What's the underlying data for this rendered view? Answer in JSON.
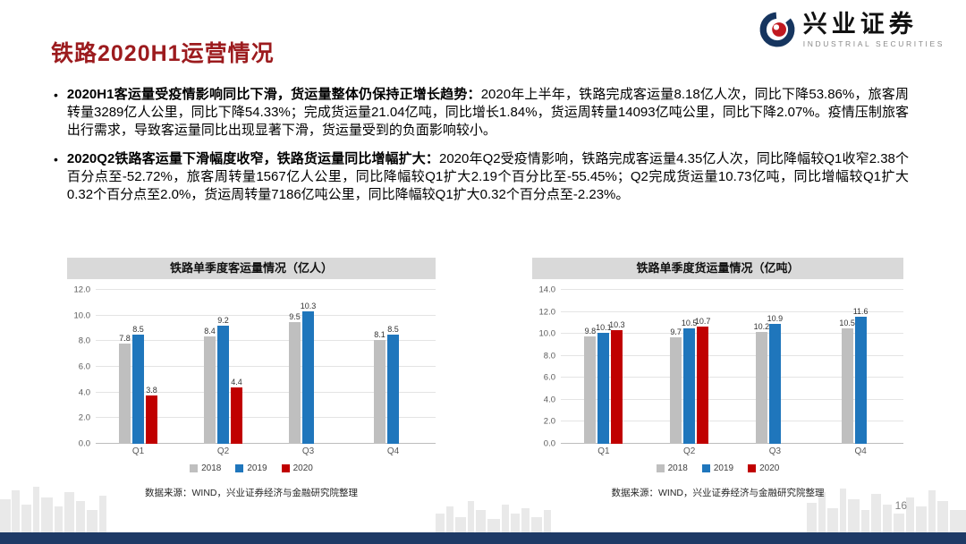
{
  "header": {
    "title": "铁路2020H1运营情况",
    "logo_cn": "兴业证券",
    "logo_en": "INDUSTRIAL SECURITIES"
  },
  "bullet_char": "•",
  "bullets": [
    {
      "bold": "2020H1客运量受疫情影响同比下滑，货运量整体仍保持正增长趋势：",
      "text": "2020年上半年，铁路完成客运量8.18亿人次，同比下降53.86%，旅客周转量3289亿人公里，同比下降54.33%；完成货运量21.04亿吨，同比增长1.84%，货运周转量14093亿吨公里，同比下降2.07%。疫情压制旅客出行需求，导致客运量同比出现显著下滑，货运量受到的负面影响较小。"
    },
    {
      "bold": "2020Q2铁路客运量下滑幅度收窄，铁路货运量同比增幅扩大：",
      "text": "2020年Q2受疫情影响，铁路完成客运量4.35亿人次，同比降幅较Q1收窄2.38个百分点至-52.72%，旅客周转量1567亿人公里，同比降幅较Q1扩大2.19个百分比至-55.45%；Q2完成货运量10.73亿吨，同比增幅较Q1扩大0.32个百分点至2.0%，货运周转量7186亿吨公里，同比降幅较Q1扩大0.32个百分点至-2.23%。"
    }
  ],
  "colors": {
    "title_red": "#9C1B1E",
    "series_2018": "#BFBFBF",
    "series_2019": "#1F76BC",
    "series_2020": "#C00000",
    "chart_title_bg": "#D9D9D9",
    "footer_navy": "#1E3A66"
  },
  "chart_data": [
    {
      "type": "bar",
      "title": "铁路单季度客运量情况（亿人）",
      "categories": [
        "Q1",
        "Q2",
        "Q3",
        "Q4"
      ],
      "series": [
        {
          "name": "2018",
          "color": "#BFBFBF",
          "values": [
            7.8,
            8.4,
            9.5,
            8.1
          ]
        },
        {
          "name": "2019",
          "color": "#1F76BC",
          "values": [
            8.5,
            9.2,
            10.3,
            8.5
          ]
        },
        {
          "name": "2020",
          "color": "#C00000",
          "values": [
            3.8,
            4.4,
            null,
            null
          ]
        }
      ],
      "ylim": [
        0,
        12
      ],
      "ytick_step": 2,
      "grid": true,
      "legend_position": "bottom",
      "source": "数据来源：WIND，兴业证券经济与金融研究院整理"
    },
    {
      "type": "bar",
      "title": "铁路单季度货运量情况（亿吨）",
      "categories": [
        "Q1",
        "Q2",
        "Q3",
        "Q4"
      ],
      "series": [
        {
          "name": "2018",
          "color": "#BFBFBF",
          "values": [
            9.8,
            9.7,
            10.2,
            10.5
          ]
        },
        {
          "name": "2019",
          "color": "#1F76BC",
          "values": [
            10.1,
            10.5,
            10.9,
            11.6
          ]
        },
        {
          "name": "2020",
          "color": "#C00000",
          "values": [
            10.3,
            10.7,
            null,
            null
          ]
        }
      ],
      "ylim": [
        0,
        14
      ],
      "ytick_step": 2,
      "grid": true,
      "legend_position": "bottom",
      "source": "数据来源：WIND，兴业证券经济与金融研究院整理"
    }
  ],
  "page_number": "16"
}
